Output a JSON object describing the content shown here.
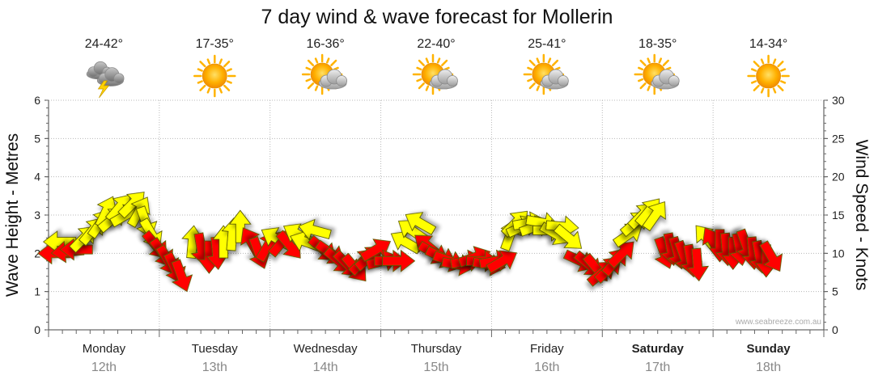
{
  "chart_data": {
    "type": "wind-wave-forecast",
    "title": "7 day wind & wave forecast for Mollerin",
    "ylabel_left": "Wave Height - Metres",
    "ylabel_right": "Wind Speed - Knots",
    "ylim_left": [
      0,
      6
    ],
    "ylim_right": [
      0,
      30
    ],
    "yticks_left": [
      "0",
      "1",
      "2",
      "3",
      "4",
      "5",
      "6"
    ],
    "yticks_right": [
      "0",
      "5",
      "10",
      "15",
      "20",
      "25",
      "30"
    ],
    "credit": "www.seabreeze.com.au",
    "days": [
      {
        "name": "Monday",
        "date": "12th",
        "bold": false,
        "temp": "24-42°",
        "icon": "storm-icon"
      },
      {
        "name": "Tuesday",
        "date": "13th",
        "bold": false,
        "temp": "17-35°",
        "icon": "sun-icon"
      },
      {
        "name": "Wednesday",
        "date": "14th",
        "bold": false,
        "temp": "16-36°",
        "icon": "sun-cloud-icon"
      },
      {
        "name": "Thursday",
        "date": "15th",
        "bold": false,
        "temp": "22-40°",
        "icon": "sun-cloud-icon"
      },
      {
        "name": "Friday",
        "date": "16th",
        "bold": false,
        "temp": "25-41°",
        "icon": "sun-cloud-icon"
      },
      {
        "name": "Saturday",
        "date": "17th",
        "bold": true,
        "temp": "18-35°",
        "icon": "sun-cloud-icon"
      },
      {
        "name": "Sunday",
        "date": "18th",
        "bold": true,
        "temp": "14-34°",
        "icon": "sun-icon"
      }
    ],
    "wind_colors": {
      "moderate": "#ffff00",
      "strong": "#ff0000"
    },
    "wind_series": {
      "unit_time": "days from start",
      "unit_speed": "knots",
      "unit_direction": "degrees wind blows toward (0 = up, clockwise)",
      "points": [
        {
          "t": 0.05,
          "speed": 10.0,
          "dir": 270,
          "level": "strong"
        },
        {
          "t": 0.1,
          "speed": 11.5,
          "dir": 270,
          "level": "moderate"
        },
        {
          "t": 0.17,
          "speed": 10.2,
          "dir": 265,
          "level": "strong"
        },
        {
          "t": 0.25,
          "speed": 10.5,
          "dir": 270,
          "level": "strong"
        },
        {
          "t": 0.32,
          "speed": 12.0,
          "dir": 45,
          "level": "moderate"
        },
        {
          "t": 0.4,
          "speed": 13.0,
          "dir": 40,
          "level": "moderate"
        },
        {
          "t": 0.47,
          "speed": 14.0,
          "dir": 35,
          "level": "moderate"
        },
        {
          "t": 0.52,
          "speed": 15.5,
          "dir": 25,
          "level": "moderate"
        },
        {
          "t": 0.58,
          "speed": 14.5,
          "dir": 50,
          "level": "moderate"
        },
        {
          "t": 0.64,
          "speed": 16.0,
          "dir": 40,
          "level": "moderate"
        },
        {
          "t": 0.7,
          "speed": 15.0,
          "dir": 60,
          "level": "moderate"
        },
        {
          "t": 0.76,
          "speed": 16.5,
          "dir": 45,
          "level": "moderate"
        },
        {
          "t": 0.82,
          "speed": 15.5,
          "dir": 30,
          "level": "moderate"
        },
        {
          "t": 0.88,
          "speed": 14.0,
          "dir": 160,
          "level": "moderate"
        },
        {
          "t": 0.93,
          "speed": 12.5,
          "dir": 150,
          "level": "moderate"
        },
        {
          "t": 0.97,
          "speed": 11.0,
          "dir": 140,
          "level": "strong"
        },
        {
          "t": 1.03,
          "speed": 10.0,
          "dir": 145,
          "level": "strong"
        },
        {
          "t": 1.08,
          "speed": 9.0,
          "dir": 150,
          "level": "strong"
        },
        {
          "t": 1.14,
          "speed": 8.0,
          "dir": 155,
          "level": "strong"
        },
        {
          "t": 1.2,
          "speed": 7.0,
          "dir": 160,
          "level": "strong"
        },
        {
          "t": 1.3,
          "speed": 11.5,
          "dir": 5,
          "level": "moderate"
        },
        {
          "t": 1.38,
          "speed": 10.5,
          "dir": 170,
          "level": "strong"
        },
        {
          "t": 1.45,
          "speed": 9.5,
          "dir": 180,
          "level": "strong"
        },
        {
          "t": 1.52,
          "speed": 10.0,
          "dir": 175,
          "level": "strong"
        },
        {
          "t": 1.58,
          "speed": 11.5,
          "dir": 0,
          "level": "moderate"
        },
        {
          "t": 1.66,
          "speed": 12.5,
          "dir": 5,
          "level": "moderate"
        },
        {
          "t": 1.73,
          "speed": 13.5,
          "dir": 0,
          "level": "moderate"
        },
        {
          "t": 1.83,
          "speed": 11.5,
          "dir": 330,
          "level": "strong"
        },
        {
          "t": 1.9,
          "speed": 10.0,
          "dir": 160,
          "level": "strong"
        },
        {
          "t": 1.98,
          "speed": 11.0,
          "dir": 30,
          "level": "strong"
        },
        {
          "t": 2.05,
          "speed": 12.0,
          "dir": 300,
          "level": "moderate"
        },
        {
          "t": 2.11,
          "speed": 11.5,
          "dir": 40,
          "level": "strong"
        },
        {
          "t": 2.18,
          "speed": 11.0,
          "dir": 140,
          "level": "strong"
        },
        {
          "t": 2.25,
          "speed": 12.5,
          "dir": 300,
          "level": "moderate"
        },
        {
          "t": 2.32,
          "speed": 11.5,
          "dir": 290,
          "level": "moderate"
        },
        {
          "t": 2.4,
          "speed": 13.0,
          "dir": 285,
          "level": "moderate"
        },
        {
          "t": 2.48,
          "speed": 10.5,
          "dir": 130,
          "level": "strong"
        },
        {
          "t": 2.55,
          "speed": 10.0,
          "dir": 125,
          "level": "strong"
        },
        {
          "t": 2.62,
          "speed": 9.0,
          "dir": 130,
          "level": "strong"
        },
        {
          "t": 2.7,
          "speed": 8.5,
          "dir": 135,
          "level": "strong"
        },
        {
          "t": 2.77,
          "speed": 8.0,
          "dir": 140,
          "level": "strong"
        },
        {
          "t": 2.84,
          "speed": 9.0,
          "dir": 45,
          "level": "strong"
        },
        {
          "t": 2.9,
          "speed": 9.5,
          "dir": 50,
          "level": "strong"
        },
        {
          "t": 2.96,
          "speed": 10.5,
          "dir": 60,
          "level": "strong"
        },
        {
          "t": 3.02,
          "speed": 9.0,
          "dir": 75,
          "level": "strong"
        },
        {
          "t": 3.09,
          "speed": 9.0,
          "dir": 90,
          "level": "strong"
        },
        {
          "t": 3.16,
          "speed": 9.0,
          "dir": 90,
          "level": "strong"
        },
        {
          "t": 3.22,
          "speed": 11.5,
          "dir": 300,
          "level": "moderate"
        },
        {
          "t": 3.28,
          "speed": 13.0,
          "dir": 305,
          "level": "moderate"
        },
        {
          "t": 3.35,
          "speed": 14.0,
          "dir": 300,
          "level": "moderate"
        },
        {
          "t": 3.42,
          "speed": 11.0,
          "dir": 310,
          "level": "strong"
        },
        {
          "t": 3.48,
          "speed": 10.0,
          "dir": 120,
          "level": "strong"
        },
        {
          "t": 3.55,
          "speed": 9.5,
          "dir": 115,
          "level": "strong"
        },
        {
          "t": 3.62,
          "speed": 9.0,
          "dir": 110,
          "level": "strong"
        },
        {
          "t": 3.7,
          "speed": 8.5,
          "dir": 100,
          "level": "strong"
        },
        {
          "t": 3.78,
          "speed": 9.0,
          "dir": 80,
          "level": "strong"
        },
        {
          "t": 3.85,
          "speed": 9.5,
          "dir": 70,
          "level": "strong"
        },
        {
          "t": 3.92,
          "speed": 9.0,
          "dir": 90,
          "level": "strong"
        },
        {
          "t": 3.98,
          "speed": 8.5,
          "dir": 100,
          "level": "strong"
        },
        {
          "t": 4.04,
          "speed": 9.0,
          "dir": 80,
          "level": "strong"
        },
        {
          "t": 4.1,
          "speed": 9.0,
          "dir": 60,
          "level": "strong"
        },
        {
          "t": 4.17,
          "speed": 12.5,
          "dir": 20,
          "level": "moderate"
        },
        {
          "t": 4.22,
          "speed": 14.0,
          "dir": 45,
          "level": "moderate"
        },
        {
          "t": 4.28,
          "speed": 13.5,
          "dir": 65,
          "level": "moderate"
        },
        {
          "t": 4.34,
          "speed": 14.0,
          "dir": 80,
          "level": "moderate"
        },
        {
          "t": 4.4,
          "speed": 13.5,
          "dir": 70,
          "level": "moderate"
        },
        {
          "t": 4.46,
          "speed": 14.0,
          "dir": 100,
          "level": "moderate"
        },
        {
          "t": 4.52,
          "speed": 13.0,
          "dir": 90,
          "level": "moderate"
        },
        {
          "t": 4.58,
          "speed": 12.5,
          "dir": 120,
          "level": "moderate"
        },
        {
          "t": 4.64,
          "speed": 13.5,
          "dir": 95,
          "level": "moderate"
        },
        {
          "t": 4.7,
          "speed": 12.0,
          "dir": 130,
          "level": "moderate"
        },
        {
          "t": 4.8,
          "speed": 9.0,
          "dir": 115,
          "level": "strong"
        },
        {
          "t": 4.88,
          "speed": 8.5,
          "dir": 130,
          "level": "strong"
        },
        {
          "t": 4.95,
          "speed": 8.0,
          "dir": 140,
          "level": "strong"
        },
        {
          "t": 5.0,
          "speed": 7.5,
          "dir": 50,
          "level": "strong"
        },
        {
          "t": 5.06,
          "speed": 8.0,
          "dir": 45,
          "level": "strong"
        },
        {
          "t": 5.12,
          "speed": 9.0,
          "dir": 40,
          "level": "strong"
        },
        {
          "t": 5.18,
          "speed": 10.0,
          "dir": 45,
          "level": "strong"
        },
        {
          "t": 5.24,
          "speed": 12.5,
          "dir": 55,
          "level": "moderate"
        },
        {
          "t": 5.3,
          "speed": 14.0,
          "dir": 50,
          "level": "moderate"
        },
        {
          "t": 5.36,
          "speed": 15.0,
          "dir": 45,
          "level": "moderate"
        },
        {
          "t": 5.42,
          "speed": 15.5,
          "dir": 40,
          "level": "moderate"
        },
        {
          "t": 5.48,
          "speed": 15.0,
          "dir": 35,
          "level": "moderate"
        },
        {
          "t": 5.56,
          "speed": 10.0,
          "dir": 160,
          "level": "strong"
        },
        {
          "t": 5.62,
          "speed": 10.5,
          "dir": 170,
          "level": "strong"
        },
        {
          "t": 5.68,
          "speed": 10.0,
          "dir": 165,
          "level": "strong"
        },
        {
          "t": 5.74,
          "speed": 9.5,
          "dir": 160,
          "level": "strong"
        },
        {
          "t": 5.8,
          "speed": 9.0,
          "dir": 170,
          "level": "strong"
        },
        {
          "t": 5.86,
          "speed": 8.5,
          "dir": 175,
          "level": "strong"
        },
        {
          "t": 5.94,
          "speed": 12.0,
          "dir": 320,
          "level": "moderate"
        },
        {
          "t": 6.0,
          "speed": 11.5,
          "dir": 330,
          "level": "strong"
        },
        {
          "t": 6.06,
          "speed": 11.0,
          "dir": 180,
          "level": "strong"
        },
        {
          "t": 6.12,
          "speed": 10.5,
          "dir": 175,
          "level": "strong"
        },
        {
          "t": 6.18,
          "speed": 10.0,
          "dir": 180,
          "level": "strong"
        },
        {
          "t": 6.24,
          "speed": 10.5,
          "dir": 170,
          "level": "strong"
        },
        {
          "t": 6.3,
          "speed": 11.0,
          "dir": 160,
          "level": "strong"
        },
        {
          "t": 6.36,
          "speed": 10.0,
          "dir": 175,
          "level": "strong"
        },
        {
          "t": 6.42,
          "speed": 9.5,
          "dir": 170,
          "level": "strong"
        },
        {
          "t": 6.48,
          "speed": 9.0,
          "dir": 180,
          "level": "strong"
        },
        {
          "t": 6.53,
          "speed": 9.5,
          "dir": 150,
          "level": "strong"
        }
      ]
    }
  }
}
